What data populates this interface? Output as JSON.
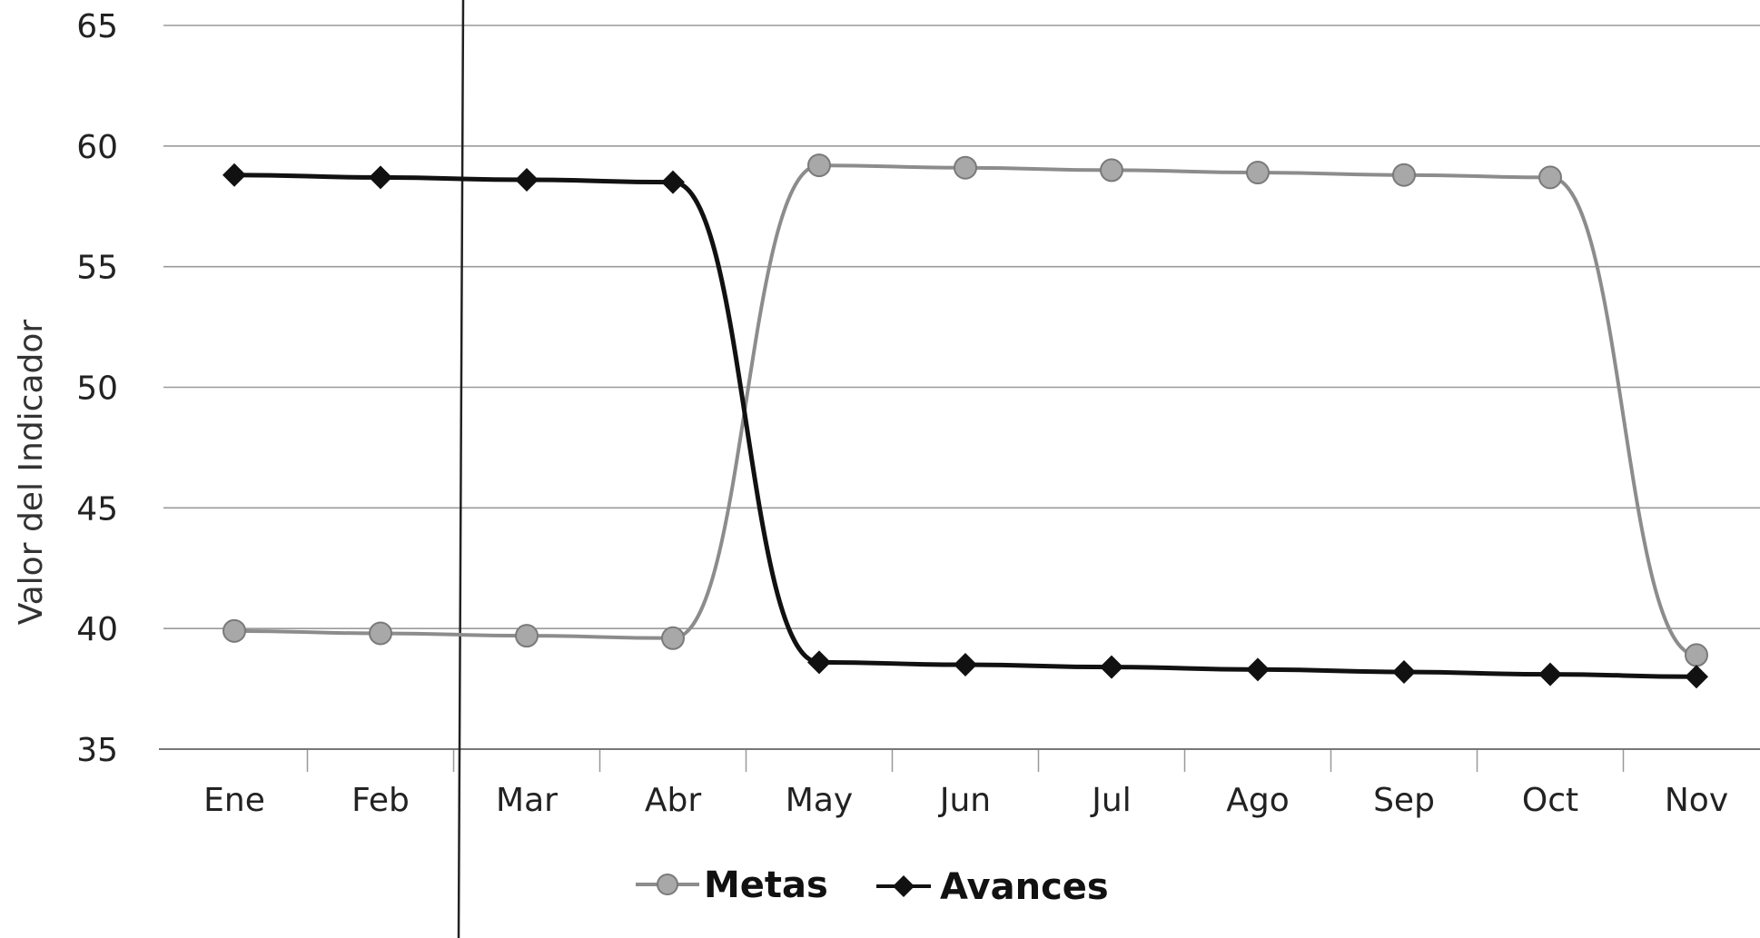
{
  "chart_data": {
    "type": "line",
    "title": "",
    "xlabel": "",
    "ylabel": "Valor del Indicador",
    "categories": [
      "Ene",
      "Feb",
      "Mar",
      "Abr",
      "May",
      "Jun",
      "Jul",
      "Ago",
      "Sep",
      "Oct",
      "Nov"
    ],
    "ylim": [
      35,
      65
    ],
    "yticks": [
      35,
      40,
      45,
      50,
      55,
      60,
      65
    ],
    "grid": true,
    "legend": "bottom",
    "series": [
      {
        "name": "Metas",
        "marker": "circle",
        "color": "#8c8c8c",
        "values": [
          39.9,
          39.8,
          39.7,
          39.6,
          59.2,
          59.1,
          59.0,
          58.9,
          58.8,
          58.7,
          38.9
        ]
      },
      {
        "name": "Avances",
        "marker": "diamond",
        "color": "#111111",
        "values": [
          58.8,
          58.7,
          58.6,
          58.5,
          38.6,
          38.5,
          38.4,
          38.3,
          38.2,
          38.1,
          38.0
        ]
      }
    ]
  }
}
